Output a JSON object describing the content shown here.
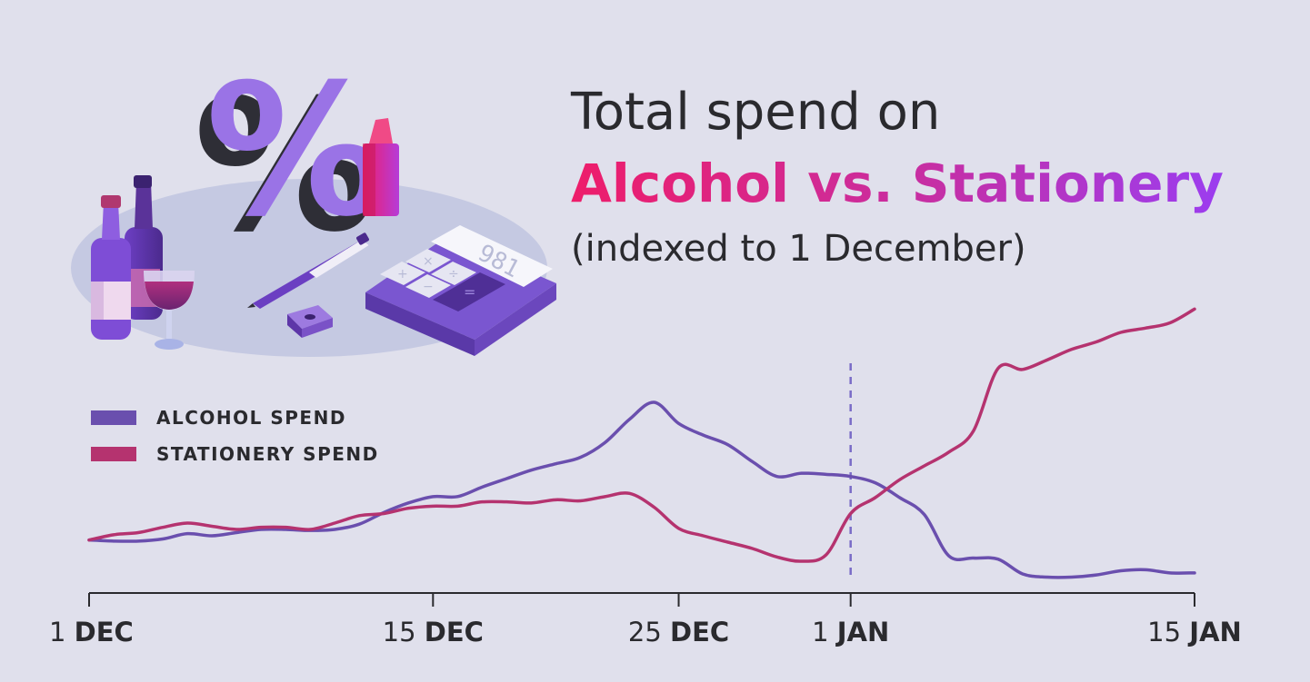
{
  "title": {
    "line1": "Total spend on",
    "line2": "Alcohol vs. Stationery",
    "line3": "(indexed to 1 December)"
  },
  "illustration": {
    "symbol": "%",
    "calculator_display": "981",
    "calculator_keys": [
      "+",
      "×",
      "−",
      "÷",
      "="
    ]
  },
  "legend": [
    {
      "label": "ALCOHOL SPEND",
      "color": "#6a4fae"
    },
    {
      "label": "STATIONERY SPEND",
      "color": "#b5336f"
    }
  ],
  "chart_data": {
    "type": "line",
    "xlabel": "",
    "ylabel": "",
    "x_ticks": [
      {
        "day": 0,
        "num": "1",
        "month": "DEC"
      },
      {
        "day": 14,
        "num": "15",
        "month": "DEC"
      },
      {
        "day": 24,
        "num": "25",
        "month": "DEC"
      },
      {
        "day": 31,
        "num": "1",
        "month": "JAN"
      },
      {
        "day": 45,
        "num": "15",
        "month": "JAN"
      }
    ],
    "marker_line_day": 31,
    "xlim": [
      0,
      45
    ],
    "ylim": [
      50,
      350
    ],
    "grid": false,
    "legend_position": "top-left",
    "series": [
      {
        "name": "ALCOHOL SPEND",
        "color": "#6a4fae",
        "x": [
          0,
          1,
          2,
          3,
          4,
          5,
          6,
          7,
          8,
          9,
          10,
          11,
          12,
          13,
          14,
          15,
          16,
          17,
          18,
          19,
          20,
          21,
          22,
          23,
          24,
          25,
          26,
          27,
          28,
          29,
          30,
          31,
          32,
          33,
          34,
          35,
          36,
          37,
          38,
          39,
          40,
          41,
          42,
          43,
          44,
          45
        ],
        "values": [
          100,
          99,
          99,
          101,
          106,
          104,
          107,
          110,
          110,
          109,
          110,
          115,
          126,
          135,
          141,
          141,
          150,
          158,
          166,
          172,
          178,
          192,
          214,
          230,
          210,
          199,
          190,
          174,
          160,
          163,
          162,
          160,
          154,
          140,
          124,
          85,
          83,
          82,
          68,
          65,
          65,
          67,
          71,
          72,
          69,
          69
        ]
      },
      {
        "name": "STATIONERY SPEND",
        "color": "#b5336f",
        "x": [
          0,
          1,
          2,
          3,
          4,
          5,
          6,
          7,
          8,
          9,
          10,
          11,
          12,
          13,
          14,
          15,
          16,
          17,
          18,
          19,
          20,
          21,
          22,
          23,
          24,
          25,
          26,
          27,
          28,
          29,
          30,
          31,
          32,
          33,
          34,
          35,
          36,
          37,
          38,
          39,
          40,
          41,
          42,
          43,
          44,
          45
        ],
        "values": [
          100,
          105,
          107,
          112,
          116,
          113,
          110,
          112,
          112,
          110,
          116,
          123,
          125,
          130,
          132,
          132,
          136,
          136,
          135,
          138,
          137,
          141,
          144,
          131,
          111,
          104,
          98,
          92,
          84,
          80,
          86,
          125,
          140,
          157,
          170,
          183,
          203,
          262,
          261,
          270,
          280,
          287,
          296,
          300,
          305,
          318
        ]
      }
    ]
  }
}
